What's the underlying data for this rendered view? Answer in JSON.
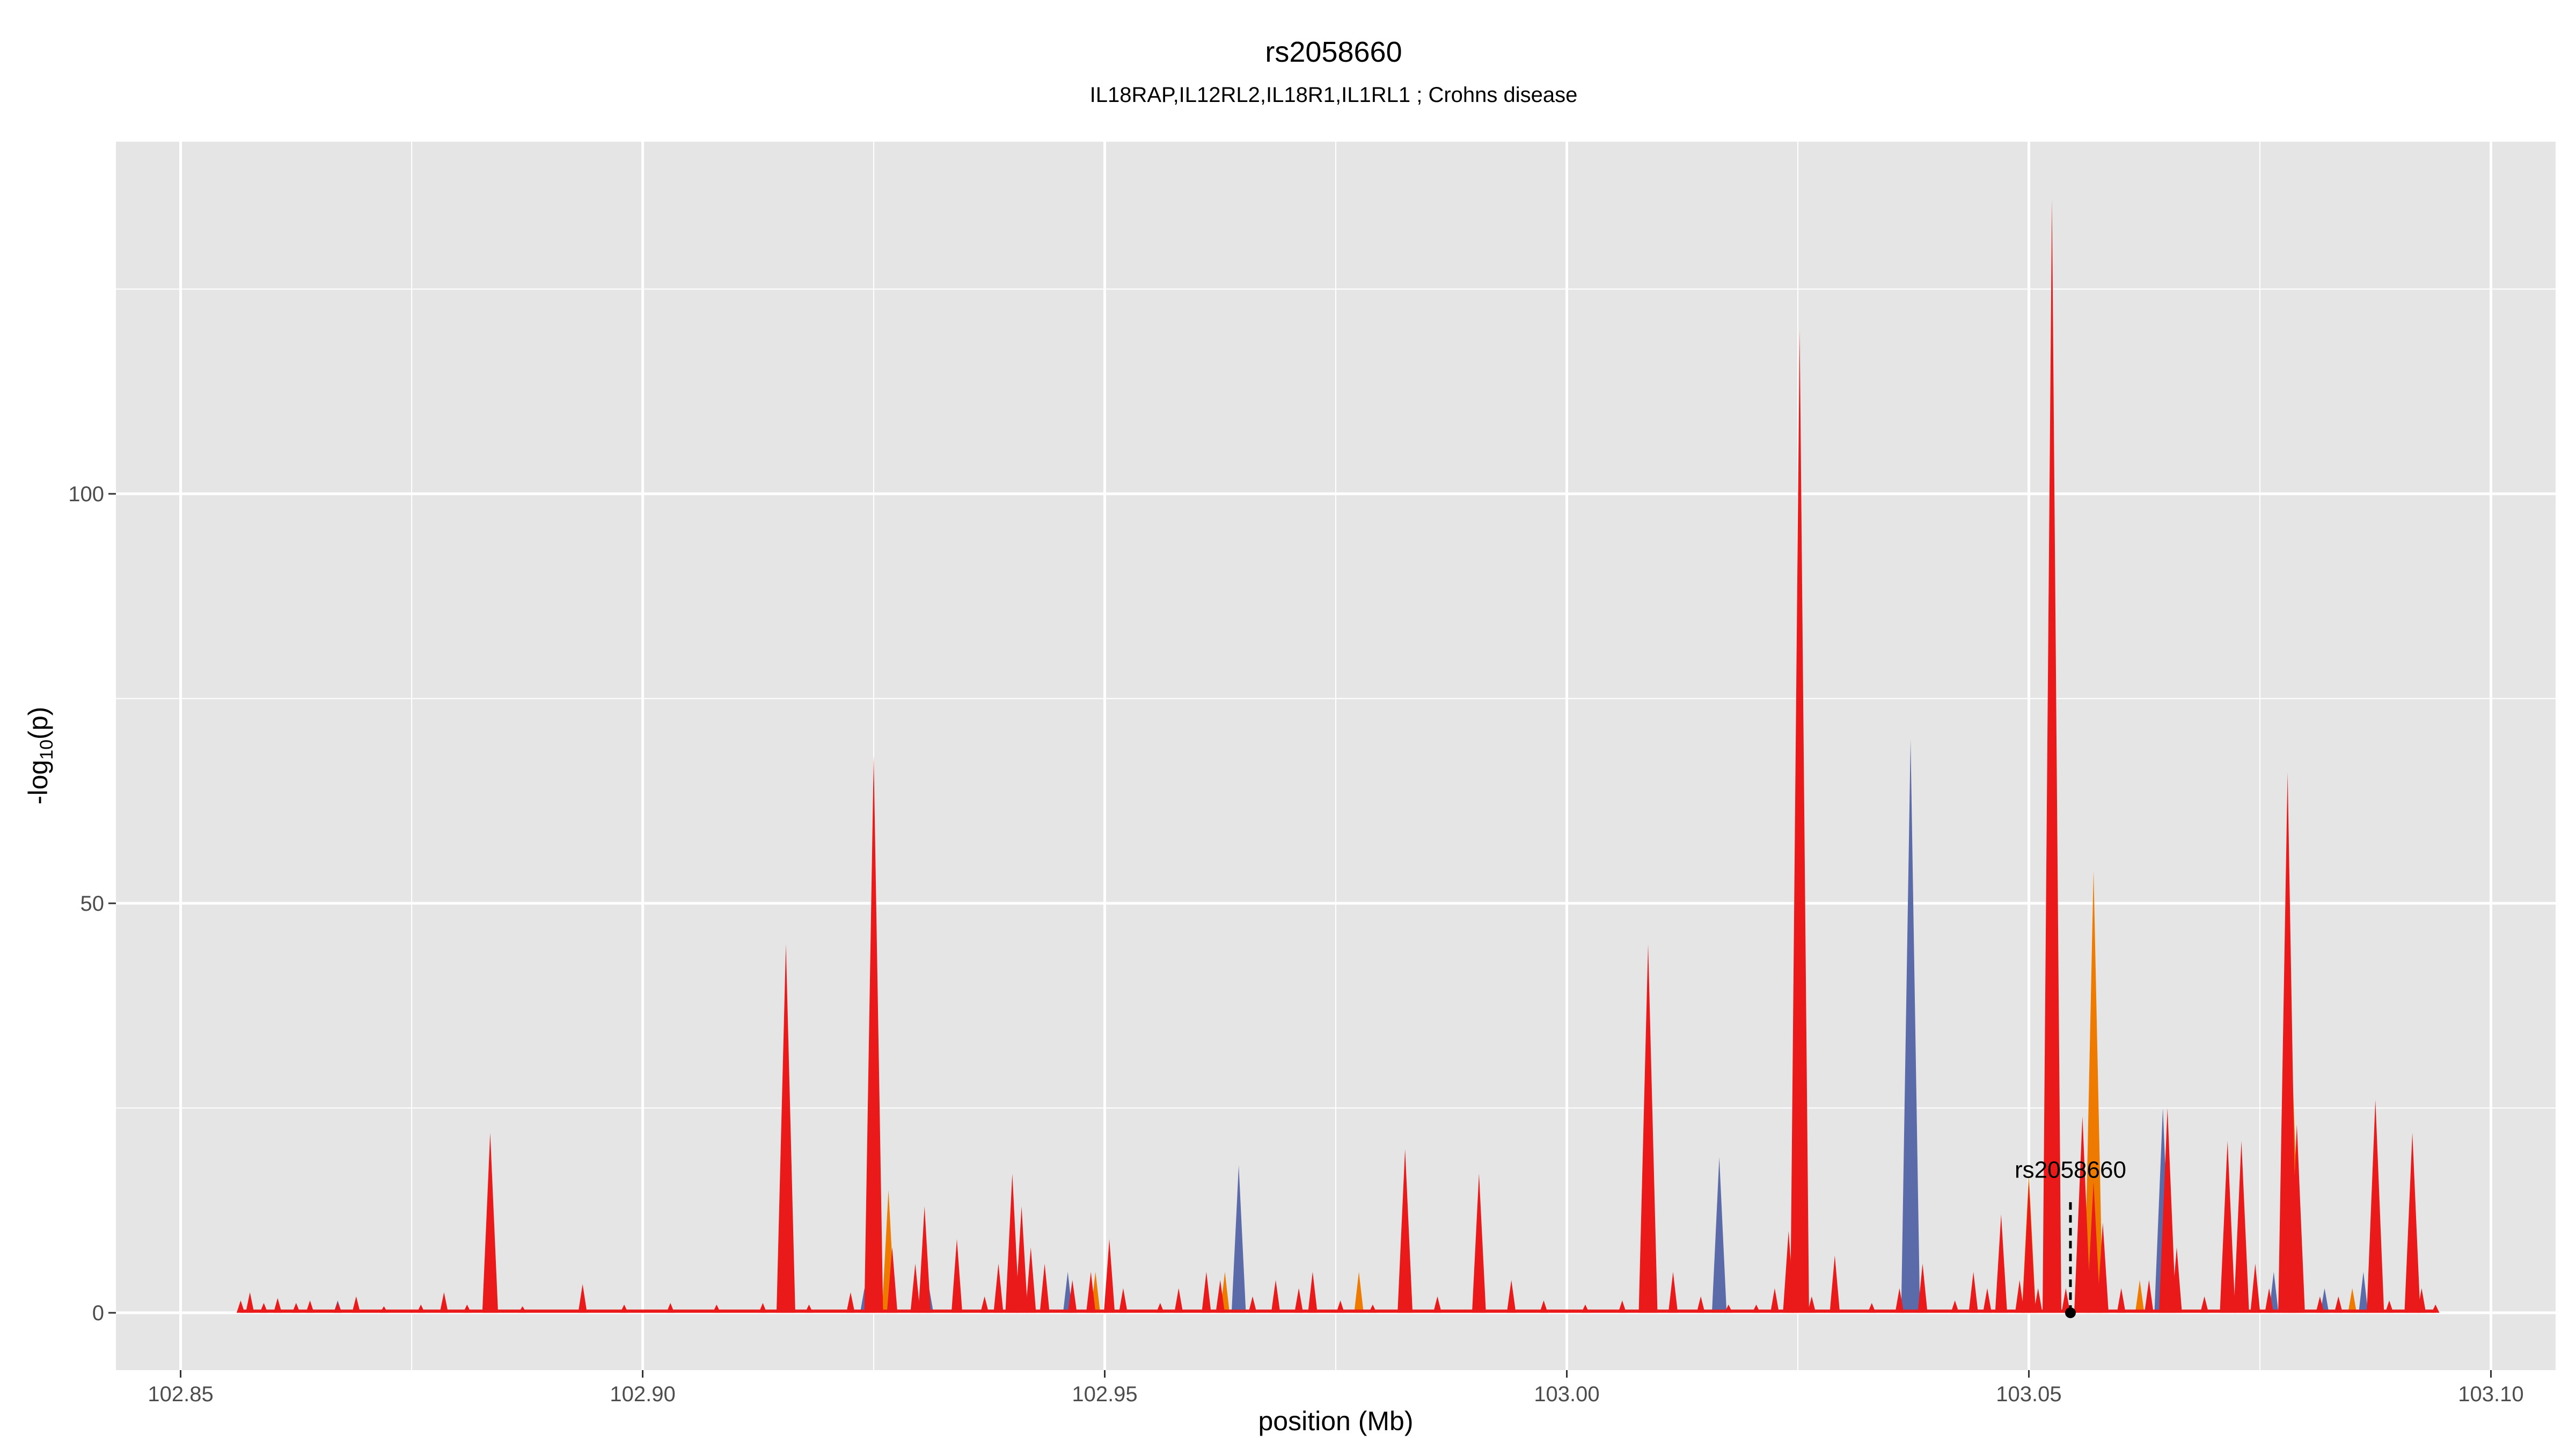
{
  "chart_data": {
    "type": "area",
    "title": "rs2058660",
    "subtitle": "IL18RAP,IL12RL2,IL18R1,IL1RL1 ; Crohns disease",
    "xlabel": "position (Mb)",
    "ylabel_main": "-log",
    "ylabel_sub": "10",
    "ylabel_tail": "(p)",
    "xlim": [
      102.843,
      103.107
    ],
    "ylim": [
      -7,
      143
    ],
    "x_ticks": [
      {
        "value": 102.85,
        "label": "102.85"
      },
      {
        "value": 102.9,
        "label": "102.90"
      },
      {
        "value": 102.95,
        "label": "102.95"
      },
      {
        "value": 103.0,
        "label": "103.00"
      },
      {
        "value": 103.05,
        "label": "103.05"
      },
      {
        "value": 103.1,
        "label": "103.10"
      }
    ],
    "y_ticks": [
      {
        "value": 0,
        "label": "0"
      },
      {
        "value": 50,
        "label": "50"
      },
      {
        "value": 100,
        "label": "100"
      }
    ],
    "grid": true,
    "legend": "none",
    "annotation": {
      "label": "rs2058660",
      "x": 103.0545,
      "y_top": 13.5,
      "y_label": 16.5
    },
    "colors": {
      "panel": "#e5e5e5",
      "grid": "#ffffff",
      "red": "#ea1a1a",
      "orange": "#ee7b00",
      "blue": "#5b6aa8"
    },
    "series": [
      {
        "color": "red",
        "peaks": [
          [
            102.8565,
            1.5
          ],
          [
            102.8575,
            2.5
          ],
          [
            102.859,
            1.2
          ],
          [
            102.8605,
            1.8
          ],
          [
            102.8625,
            1.2
          ],
          [
            102.864,
            1.5
          ],
          [
            102.867,
            1.3
          ],
          [
            102.869,
            2.0
          ],
          [
            102.872,
            0.8
          ],
          [
            102.876,
            1.0
          ],
          [
            102.8785,
            2.5
          ],
          [
            102.881,
            1.0
          ],
          [
            102.8835,
            22
          ],
          [
            102.887,
            0.8
          ],
          [
            102.8935,
            3.5
          ],
          [
            102.898,
            1.0
          ],
          [
            102.903,
            1.2
          ],
          [
            102.908,
            1.0
          ],
          [
            102.913,
            1.2
          ],
          [
            102.9155,
            45
          ],
          [
            102.918,
            1.0
          ],
          [
            102.9225,
            2.5
          ],
          [
            102.925,
            68
          ],
          [
            102.927,
            8
          ],
          [
            102.9295,
            6
          ],
          [
            102.9305,
            13
          ],
          [
            102.934,
            9
          ],
          [
            102.937,
            2.0
          ],
          [
            102.9385,
            6
          ],
          [
            102.94,
            17
          ],
          [
            102.941,
            13
          ],
          [
            102.942,
            8
          ],
          [
            102.9435,
            6
          ],
          [
            102.9465,
            4
          ],
          [
            102.9485,
            5
          ],
          [
            102.9505,
            9
          ],
          [
            102.952,
            3
          ],
          [
            102.956,
            1.2
          ],
          [
            102.958,
            3
          ],
          [
            102.961,
            5
          ],
          [
            102.9625,
            4
          ],
          [
            102.966,
            2.0
          ],
          [
            102.9685,
            4
          ],
          [
            102.971,
            3
          ],
          [
            102.9725,
            5
          ],
          [
            102.9755,
            1.5
          ],
          [
            102.979,
            1.0
          ],
          [
            102.9825,
            20
          ],
          [
            102.986,
            2.0
          ],
          [
            102.9905,
            17
          ],
          [
            102.994,
            4
          ],
          [
            102.9975,
            1.5
          ],
          [
            103.002,
            1.0
          ],
          [
            103.006,
            1.5
          ],
          [
            103.0088,
            45
          ],
          [
            103.0115,
            5
          ],
          [
            103.0145,
            2.0
          ],
          [
            103.0175,
            1.0
          ],
          [
            103.0205,
            1.0
          ],
          [
            103.0225,
            3
          ],
          [
            103.024,
            10
          ],
          [
            103.0252,
            120
          ],
          [
            103.0265,
            2.0
          ],
          [
            103.029,
            7
          ],
          [
            103.033,
            1.2
          ],
          [
            103.036,
            3
          ],
          [
            103.0385,
            6
          ],
          [
            103.042,
            1.5
          ],
          [
            103.044,
            5
          ],
          [
            103.0455,
            3
          ],
          [
            103.047,
            12
          ],
          [
            103.049,
            4
          ],
          [
            103.05,
            16
          ],
          [
            103.051,
            3
          ],
          [
            103.0525,
            136
          ],
          [
            103.054,
            3
          ],
          [
            103.0558,
            24
          ],
          [
            103.057,
            16
          ],
          [
            103.058,
            11
          ],
          [
            103.06,
            3
          ],
          [
            103.063,
            4
          ],
          [
            103.065,
            25
          ],
          [
            103.066,
            8
          ],
          [
            103.069,
            2.0
          ],
          [
            103.0715,
            21
          ],
          [
            103.073,
            21
          ],
          [
            103.0745,
            6
          ],
          [
            103.076,
            3
          ],
          [
            103.078,
            66
          ],
          [
            103.079,
            23
          ],
          [
            103.0815,
            2.0
          ],
          [
            103.0835,
            2.0
          ],
          [
            103.0875,
            26
          ],
          [
            103.089,
            1.5
          ],
          [
            103.0915,
            22
          ],
          [
            103.0925,
            3
          ],
          [
            103.094,
            1.0
          ]
        ]
      },
      {
        "color": "orange",
        "peaks": [
          [
            102.9266,
            15
          ],
          [
            102.949,
            5
          ],
          [
            102.963,
            5
          ],
          [
            102.9775,
            5
          ],
          [
            103.0245,
            12
          ],
          [
            103.05,
            17
          ],
          [
            103.057,
            54
          ],
          [
            103.062,
            4
          ],
          [
            103.0785,
            30
          ],
          [
            103.085,
            3
          ]
        ]
      },
      {
        "color": "blue",
        "peaks": [
          [
            102.867,
            1.5
          ],
          [
            102.924,
            3
          ],
          [
            102.931,
            3
          ],
          [
            102.946,
            5
          ],
          [
            102.9645,
            18
          ],
          [
            103.0165,
            19
          ],
          [
            103.0372,
            70
          ],
          [
            103.0645,
            25
          ],
          [
            103.0765,
            5
          ],
          [
            103.082,
            3
          ],
          [
            103.0862,
            5
          ]
        ]
      }
    ]
  }
}
